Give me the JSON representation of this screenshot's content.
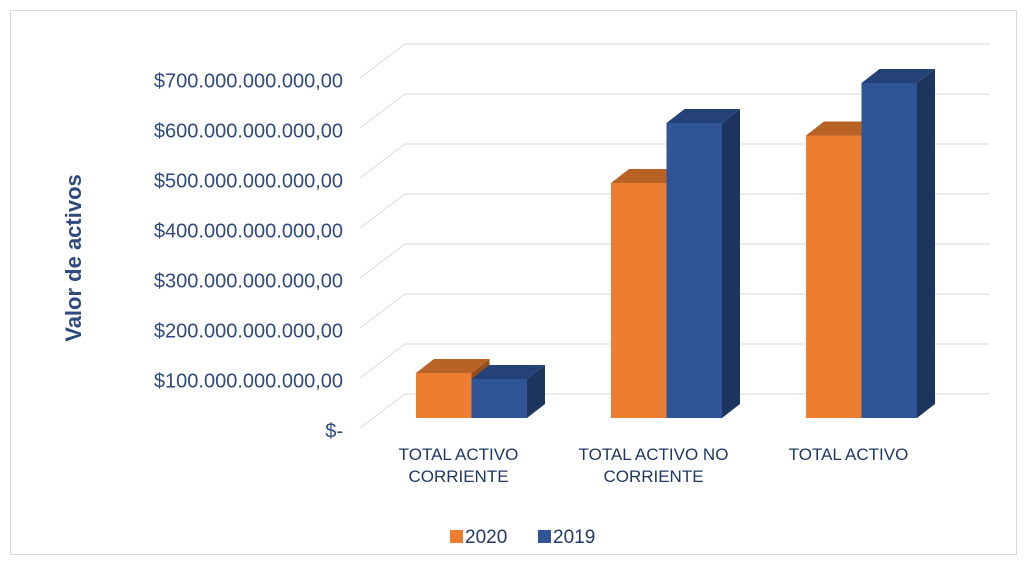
{
  "chart_data": {
    "type": "bar3d",
    "y_axis_label": "Valor de activos",
    "categories": [
      "TOTAL ACTIVO CORRIENTE",
      "TOTAL ACTIVO NO CORRIENTE",
      "TOTAL ACTIVO"
    ],
    "series": [
      {
        "name": "2020",
        "color": "#ed7d31",
        "values": [
          90000000000,
          470000000000,
          565000000000
        ]
      },
      {
        "name": "2019",
        "color": "#2f5597",
        "values": [
          78000000000,
          590000000000,
          670000000000
        ]
      }
    ],
    "ylim": [
      0,
      700000000000
    ],
    "yticks": [
      {
        "value": 0,
        "label": "$-"
      },
      {
        "value": 100000000000,
        "label": "$100.000.000.000,00"
      },
      {
        "value": 200000000000,
        "label": "$200.000.000.000,00"
      },
      {
        "value": 300000000000,
        "label": "$300.000.000.000,00"
      },
      {
        "value": 400000000000,
        "label": "$400.000.000.000,00"
      },
      {
        "value": 500000000000,
        "label": "$500.000.000.000,00"
      },
      {
        "value": 600000000000,
        "label": "$600.000.000.000,00"
      },
      {
        "value": 700000000000,
        "label": "$700.000.000.000,00"
      }
    ],
    "grid": true,
    "legend": "bottom"
  }
}
